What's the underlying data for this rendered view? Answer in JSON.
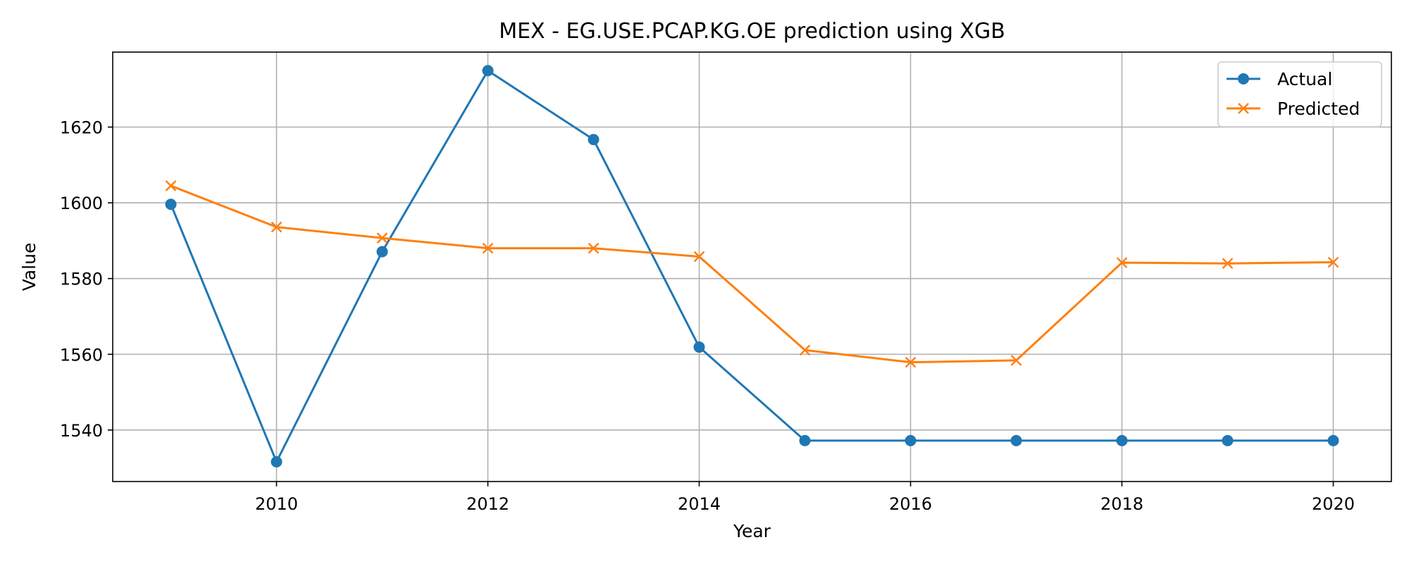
{
  "chart_data": {
    "type": "line",
    "title": "MEX - EG.USE.PCAP.KG.OE prediction using XGB",
    "xlabel": "Year",
    "ylabel": "Value",
    "x": [
      2009,
      2010,
      2011,
      2012,
      2013,
      2014,
      2015,
      2016,
      2017,
      2018,
      2019,
      2020
    ],
    "xticks": [
      2010,
      2012,
      2014,
      2016,
      2018,
      2020
    ],
    "yticks": [
      1540,
      1560,
      1580,
      1600,
      1620
    ],
    "xlim": [
      2008.45,
      2020.55
    ],
    "ylim": [
      1526.4,
      1639.8
    ],
    "grid": true,
    "legend_position": "top-right",
    "series": [
      {
        "name": "Actual",
        "color": "#1f77b4",
        "marker": "circle",
        "values": [
          1599.6,
          1531.6,
          1587.1,
          1634.9,
          1616.7,
          1561.9,
          1537.2,
          1537.2,
          1537.2,
          1537.2,
          1537.2,
          1537.2
        ]
      },
      {
        "name": "Predicted",
        "color": "#ff7f0e",
        "marker": "x",
        "values": [
          1604.5,
          1593.6,
          1590.7,
          1588.0,
          1588.0,
          1585.8,
          1561.1,
          1557.9,
          1558.4,
          1584.2,
          1584.0,
          1584.3
        ]
      }
    ]
  }
}
